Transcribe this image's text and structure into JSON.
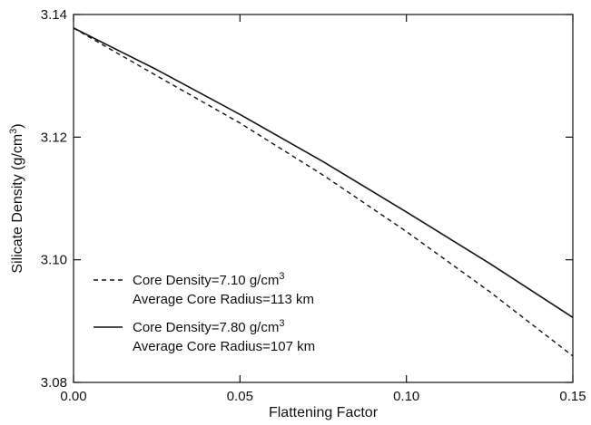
{
  "chart_data": {
    "type": "line",
    "xlabel": "Flattening Factor",
    "ylabel_main": "Silicate Density (g/cm",
    "ylabel_sup": "3",
    "ylabel_tail": ")",
    "xlim": [
      0,
      0.15
    ],
    "ylim": [
      3.08,
      3.14
    ],
    "xticks": [
      0,
      0.05,
      0.1,
      0.15
    ],
    "xtick_labels": [
      "0.00",
      "0.05",
      "0.10",
      "0.15"
    ],
    "yticks": [
      3.08,
      3.1,
      3.12,
      3.14
    ],
    "ytick_labels": [
      "3.08",
      "3.10",
      "3.12",
      "3.14"
    ],
    "grid": false,
    "legend_position": "bottom-left",
    "series": [
      {
        "style": "dashed",
        "color": "#111111",
        "legend_line1": "Core Density=7.10 g/cm",
        "legend_line1_sup": "3",
        "legend_line2": "Average Core Radius=113 km",
        "x": [
          0,
          0.025,
          0.05,
          0.075,
          0.1,
          0.125,
          0.15
        ],
        "y": [
          3.1378,
          3.13,
          3.1223,
          3.1138,
          3.1046,
          3.0948,
          3.0843
        ]
      },
      {
        "style": "solid",
        "color": "#111111",
        "legend_line1": "Core Density=7.80 g/cm",
        "legend_line1_sup": "3",
        "legend_line2": "Average Core Radius=107 km",
        "x": [
          0,
          0.025,
          0.05,
          0.075,
          0.1,
          0.125,
          0.15
        ],
        "y": [
          3.1378,
          3.131,
          3.1237,
          3.116,
          3.1078,
          3.0994,
          3.0906
        ]
      }
    ]
  }
}
